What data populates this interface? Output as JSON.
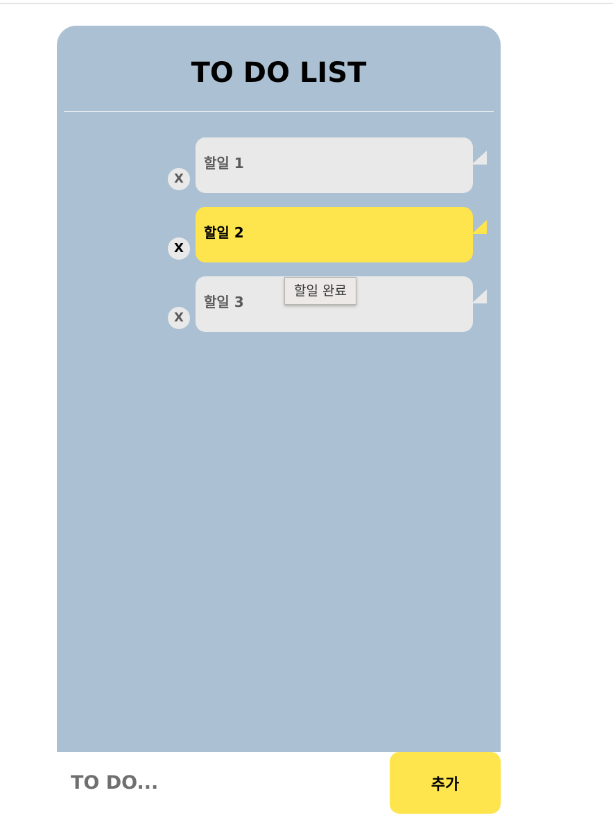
{
  "app": {
    "title": "TO DO LIST"
  },
  "todos": [
    {
      "text": "할일 1",
      "delete_label": "X",
      "completed": false
    },
    {
      "text": "할일 2",
      "delete_label": "X",
      "completed": true
    },
    {
      "text": "할일 3",
      "delete_label": "X",
      "completed": false
    }
  ],
  "tooltip": {
    "text": "할일 완료"
  },
  "input": {
    "placeholder": "TO DO...",
    "value": ""
  },
  "add_button": {
    "label": "추가"
  },
  "colors": {
    "panel_background": "#abc1d3",
    "bubble_default": "#e9e9e9",
    "bubble_active": "#fee44d",
    "add_button": "#fee44d",
    "title_text": "#000000"
  }
}
